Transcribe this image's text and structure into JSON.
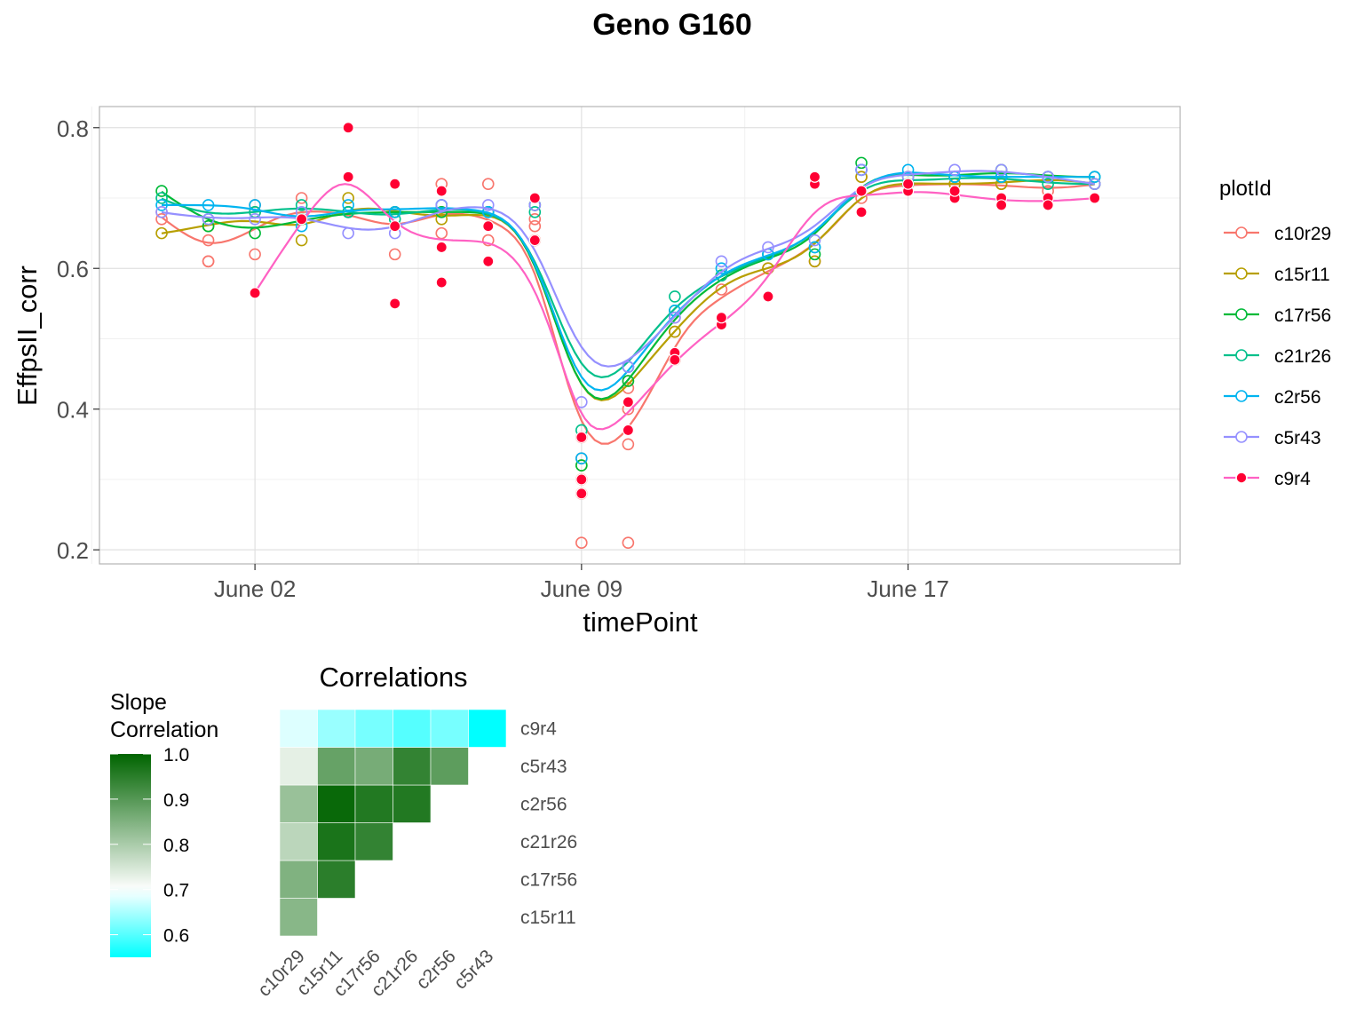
{
  "chart_data": [
    {
      "type": "scatter",
      "title": "Geno G160",
      "xlabel": "timePoint",
      "ylabel": "EffpsII_corr",
      "x_tick_labels": [
        "June 02",
        "June 09",
        "June 17"
      ],
      "x_ticks": [
        "2018-06-02",
        "2018-06-09",
        "2018-06-16"
      ],
      "xlim": [
        "2018-05-29T16:00",
        "2018-06-21T20:00"
      ],
      "ylim": [
        0.18,
        0.83
      ],
      "y_ticks": [
        0.2,
        0.4,
        0.6,
        0.8
      ],
      "y_tick_labels": [
        "0.2",
        "0.4",
        "0.6",
        "0.8"
      ],
      "grid": true,
      "smoothing": "loess",
      "legend": {
        "title": "plotId",
        "position": "right",
        "filled_series": [
          "c9r4"
        ]
      },
      "series": [
        {
          "name": "c10r29",
          "color": "#F8766D",
          "x": [
            "2018-05-31",
            "2018-05-31",
            "2018-06-01",
            "2018-06-01",
            "2018-06-01",
            "2018-06-02",
            "2018-06-02",
            "2018-06-03",
            "2018-06-04",
            "2018-06-05",
            "2018-06-05",
            "2018-06-06",
            "2018-06-06",
            "2018-06-06",
            "2018-06-07",
            "2018-06-07",
            "2018-06-08",
            "2018-06-08",
            "2018-06-08",
            "2018-06-08",
            "2018-06-09",
            "2018-06-09",
            "2018-06-09",
            "2018-06-09",
            "2018-06-09",
            "2018-06-10",
            "2018-06-10",
            "2018-06-10",
            "2018-06-10",
            "2018-06-11",
            "2018-06-11",
            "2018-06-11",
            "2018-06-12",
            "2018-06-13",
            "2018-06-14",
            "2018-06-15",
            "2018-06-15",
            "2018-06-16",
            "2018-06-17",
            "2018-06-18",
            "2018-06-19",
            "2018-06-20"
          ],
          "y": [
            0.67,
            0.68,
            0.64,
            0.61,
            0.61,
            0.69,
            0.62,
            0.7,
            0.68,
            0.68,
            0.62,
            0.65,
            0.72,
            0.68,
            0.64,
            0.72,
            0.67,
            0.64,
            0.66,
            0.69,
            0.3,
            0.33,
            0.21,
            0.28,
            0.36,
            0.21,
            0.35,
            0.4,
            0.43,
            0.47,
            0.53,
            0.51,
            0.57,
            0.6,
            0.61,
            0.73,
            0.7,
            0.72,
            0.72,
            0.72,
            0.71,
            0.72
          ]
        },
        {
          "name": "c15r11",
          "color": "#B79F00",
          "x": [
            "2018-05-31",
            "2018-06-01",
            "2018-06-02",
            "2018-06-03",
            "2018-06-04",
            "2018-06-05",
            "2018-06-06",
            "2018-06-07",
            "2018-06-08",
            "2018-06-09",
            "2018-06-10",
            "2018-06-11",
            "2018-06-12",
            "2018-06-13",
            "2018-06-14",
            "2018-06-15",
            "2018-06-16",
            "2018-06-17",
            "2018-06-18",
            "2018-06-19",
            "2018-06-20"
          ],
          "y": [
            0.65,
            0.66,
            0.68,
            0.64,
            0.7,
            0.68,
            0.67,
            0.68,
            0.69,
            0.32,
            0.44,
            0.51,
            0.59,
            0.6,
            0.61,
            0.73,
            0.72,
            0.72,
            0.72,
            0.73,
            0.72
          ]
        },
        {
          "name": "c17r56",
          "color": "#00BA38",
          "x": [
            "2018-05-31",
            "2018-06-01",
            "2018-06-02",
            "2018-06-03",
            "2018-06-04",
            "2018-06-05",
            "2018-06-06",
            "2018-06-07",
            "2018-06-08",
            "2018-06-09",
            "2018-06-10",
            "2018-06-11",
            "2018-06-12",
            "2018-06-13",
            "2018-06-14",
            "2018-06-15",
            "2018-06-16",
            "2018-06-17",
            "2018-06-18",
            "2018-06-19",
            "2018-06-20"
          ],
          "y": [
            0.71,
            0.66,
            0.65,
            0.67,
            0.68,
            0.68,
            0.68,
            0.68,
            0.69,
            0.32,
            0.44,
            0.54,
            0.59,
            0.62,
            0.62,
            0.75,
            0.73,
            0.73,
            0.74,
            0.73,
            0.73
          ]
        },
        {
          "name": "c21r26",
          "color": "#00C08B",
          "x": [
            "2018-05-31",
            "2018-06-01",
            "2018-06-02",
            "2018-06-03",
            "2018-06-04",
            "2018-06-05",
            "2018-06-06",
            "2018-06-07",
            "2018-06-08",
            "2018-06-09",
            "2018-06-10",
            "2018-06-11",
            "2018-06-12",
            "2018-06-13",
            "2018-06-14",
            "2018-06-15",
            "2018-06-16",
            "2018-06-17",
            "2018-06-18",
            "2018-06-19",
            "2018-06-20"
          ],
          "y": [
            0.7,
            0.67,
            0.68,
            0.69,
            0.68,
            0.67,
            0.69,
            0.68,
            0.68,
            0.37,
            0.46,
            0.56,
            0.59,
            0.62,
            0.63,
            0.74,
            0.72,
            0.73,
            0.73,
            0.72,
            0.72
          ]
        },
        {
          "name": "c2r56",
          "color": "#00B4F0",
          "x": [
            "2018-05-31",
            "2018-06-01",
            "2018-06-02",
            "2018-06-03",
            "2018-06-04",
            "2018-06-05",
            "2018-06-06",
            "2018-06-07",
            "2018-06-08",
            "2018-06-09",
            "2018-06-10",
            "2018-06-11",
            "2018-06-12",
            "2018-06-13",
            "2018-06-14",
            "2018-06-15",
            "2018-06-16",
            "2018-06-17",
            "2018-06-18",
            "2018-06-19",
            "2018-06-20"
          ],
          "y": [
            0.69,
            0.69,
            0.69,
            0.66,
            0.69,
            0.68,
            0.69,
            0.68,
            0.69,
            0.33,
            0.46,
            0.54,
            0.6,
            0.62,
            0.63,
            0.74,
            0.74,
            0.73,
            0.73,
            0.73,
            0.73
          ]
        },
        {
          "name": "c5r43",
          "color": "#9590FF",
          "x": [
            "2018-05-31",
            "2018-06-01",
            "2018-06-02",
            "2018-06-03",
            "2018-06-04",
            "2018-06-05",
            "2018-06-06",
            "2018-06-07",
            "2018-06-08",
            "2018-06-09",
            "2018-06-10",
            "2018-06-11",
            "2018-06-12",
            "2018-06-13",
            "2018-06-14",
            "2018-06-15",
            "2018-06-16",
            "2018-06-17",
            "2018-06-18",
            "2018-06-19",
            "2018-06-20"
          ],
          "y": [
            0.68,
            0.67,
            0.67,
            0.68,
            0.65,
            0.65,
            0.69,
            0.69,
            0.69,
            0.41,
            0.46,
            0.53,
            0.61,
            0.63,
            0.64,
            0.74,
            0.73,
            0.74,
            0.74,
            0.73,
            0.72
          ]
        },
        {
          "name": "c9r4",
          "color": "#FF0033",
          "line_color": "#FF61C3",
          "x": [
            "2018-06-02",
            "2018-06-03",
            "2018-06-04",
            "2018-06-04",
            "2018-06-05",
            "2018-06-05",
            "2018-06-05",
            "2018-06-06",
            "2018-06-06",
            "2018-06-06",
            "2018-06-07",
            "2018-06-07",
            "2018-06-08",
            "2018-06-08",
            "2018-06-09",
            "2018-06-09",
            "2018-06-09",
            "2018-06-10",
            "2018-06-10",
            "2018-06-11",
            "2018-06-11",
            "2018-06-12",
            "2018-06-12",
            "2018-06-13",
            "2018-06-13",
            "2018-06-14",
            "2018-06-14",
            "2018-06-15",
            "2018-06-15",
            "2018-06-16",
            "2018-06-16",
            "2018-06-17",
            "2018-06-17",
            "2018-06-18",
            "2018-06-18",
            "2018-06-19",
            "2018-06-19",
            "2018-06-20"
          ],
          "y": [
            0.565,
            0.67,
            0.73,
            0.8,
            0.55,
            0.72,
            0.66,
            0.71,
            0.58,
            0.63,
            0.66,
            0.61,
            0.64,
            0.7,
            0.36,
            0.28,
            0.3,
            0.37,
            0.41,
            0.48,
            0.47,
            0.52,
            0.53,
            0.56,
            0.56,
            0.72,
            0.73,
            0.68,
            0.71,
            0.71,
            0.72,
            0.7,
            0.71,
            0.7,
            0.69,
            0.7,
            0.69,
            0.7
          ]
        }
      ]
    },
    {
      "type": "heatmap",
      "title": "Correlations",
      "colorbar": {
        "title": "Slope\nCorrelation",
        "ticks": [
          0.6,
          0.7,
          0.8,
          0.9,
          1.0
        ],
        "tick_labels": [
          "0.6",
          "0.7",
          "0.8",
          "0.9",
          "1.0"
        ],
        "range": [
          0.55,
          1.0
        ],
        "colors": {
          "low": "#00FFFF",
          "mid": "#FFFFFF",
          "high": "#006400"
        },
        "midpoint": 0.7
      },
      "x_labels": [
        "c10r29",
        "c15r11",
        "c17r56",
        "c21r26",
        "c2r56",
        "c5r43"
      ],
      "y_labels": [
        "c15r11",
        "c17r56",
        "c21r26",
        "c2r56",
        "c5r43",
        "c9r4"
      ],
      "values": [
        [
          0.84,
          null,
          null,
          null,
          null,
          null
        ],
        [
          0.85,
          0.95,
          null,
          null,
          null,
          null
        ],
        [
          0.78,
          0.97,
          0.94,
          null,
          null,
          null
        ],
        [
          0.82,
          0.99,
          0.96,
          0.96,
          null,
          null
        ],
        [
          0.73,
          0.88,
          0.86,
          0.94,
          0.89,
          null
        ],
        [
          0.68,
          0.64,
          0.62,
          0.6,
          0.62,
          0.55
        ]
      ]
    }
  ]
}
